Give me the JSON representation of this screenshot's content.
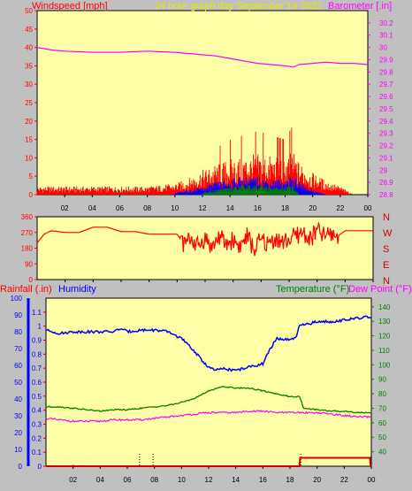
{
  "header": {
    "left_label": "Windspeed [mph]",
    "center_label": "24 hour graph day   September 19 2022",
    "right_label": "Barometer [.in]"
  },
  "bottom_labels": {
    "rainfall": "Rainfall (.in)",
    "humidity": "Humidity",
    "temperature": "Temperature (°F)",
    "dewpoint": "Dew Point (°F)"
  },
  "direction_letters": [
    "N",
    "W",
    "S",
    "E",
    "N"
  ],
  "colors": {
    "bg": "#c0c0c0",
    "plot_bg": "#ffffa8",
    "wind": "#ff0000",
    "gust": "#0000ff",
    "avg": "#008000",
    "baro": "#ff00ff",
    "humidity": "#0000ff",
    "temperature": "#008000",
    "dewpoint": "#ff00ff",
    "rain": "#cc0000"
  },
  "chart_data": [
    {
      "type": "line",
      "title": "24 hour graph day   September 19 2022",
      "x_ticks": [
        "02",
        "04",
        "06",
        "08",
        "10",
        "12",
        "14",
        "16",
        "18",
        "20",
        "22",
        "00"
      ],
      "xlim": [
        0,
        24
      ],
      "left_axis": {
        "label": "Windspeed [mph]",
        "ylim": [
          0,
          50
        ],
        "ticks": [
          "0",
          "5",
          "10",
          "15",
          "20",
          "25",
          "30",
          "35",
          "40",
          "45",
          "50"
        ]
      },
      "right_axis": {
        "label": "Barometer [.in]",
        "ylim": [
          28.8,
          30.3
        ],
        "ticks": [
          "28.8",
          "28.9",
          "29",
          "29.1",
          "29.2",
          "29.3",
          "29.4",
          "29.5",
          "29.6",
          "29.7",
          "29.8",
          "29.9",
          "30",
          "30.1",
          "30.2"
        ]
      },
      "series": [
        {
          "name": "Barometer [.in]",
          "axis": "right",
          "x": [
            0,
            1,
            2,
            4,
            6,
            8,
            10,
            11,
            12,
            13,
            14,
            15,
            16,
            17,
            18,
            18.6,
            19,
            20,
            21,
            22,
            23,
            24
          ],
          "y": [
            30,
            29.98,
            29.97,
            29.96,
            29.96,
            29.97,
            29.96,
            29.95,
            29.94,
            29.93,
            29.91,
            29.89,
            29.87,
            29.86,
            29.85,
            29.84,
            29.86,
            29.87,
            29.88,
            29.87,
            29.87,
            29.86
          ]
        },
        {
          "axis": "left",
          "x": [
            0,
            2,
            4,
            6,
            8,
            10,
            11,
            12,
            13,
            14,
            15,
            16,
            17,
            18,
            18.5,
            19,
            20,
            21,
            22,
            23
          ],
          "y": [
            1.5,
            1.5,
            1.5,
            1.5,
            1.5,
            2,
            3,
            4.5,
            5.5,
            6.5,
            7,
            7.5,
            7,
            6.5,
            8,
            6,
            4,
            2.5,
            1.5,
            0
          ]
        },
        {
          "axis": "left",
          "x": [
            10,
            11,
            12,
            13,
            14,
            15,
            16,
            17,
            18,
            18.5,
            19,
            20,
            21
          ],
          "y": [
            0.5,
            1,
            1.5,
            2.5,
            3,
            3.5,
            3.5,
            3,
            3,
            4,
            2.5,
            1,
            0
          ]
        },
        {
          "axis": "left",
          "x": [
            12,
            13,
            14,
            15,
            16,
            17,
            18,
            18.5,
            19
          ],
          "y": [
            0.5,
            1,
            1.5,
            2,
            2,
            1.5,
            1.5,
            2,
            0
          ]
        }
      ]
    },
    {
      "type": "line",
      "x_ticks": [
        "02",
        "04",
        "06",
        "08",
        "10",
        "12",
        "14",
        "16",
        "18",
        "20",
        "22",
        "00"
      ],
      "xlim": [
        0,
        24
      ],
      "ylim": [
        0,
        360
      ],
      "y_ticks": [
        "0",
        "90",
        "180",
        "270",
        "360"
      ],
      "series": [
        {
          "axis": "left",
          "x": [
            0,
            0.5,
            1,
            2,
            3,
            4,
            5,
            6,
            7,
            8,
            9,
            10,
            10.5,
            11,
            11.5,
            12,
            12.5,
            13,
            13.5,
            14,
            14.5,
            15,
            15.5,
            16,
            16.5,
            17,
            17.5,
            18,
            18.5,
            19,
            19.5,
            20,
            20.5,
            21,
            21.5,
            22,
            23,
            24
          ],
          "y": [
            210,
            260,
            280,
            270,
            270,
            300,
            300,
            275,
            275,
            260,
            260,
            260,
            200,
            240,
            190,
            240,
            180,
            250,
            200,
            230,
            190,
            250,
            170,
            230,
            200,
            240,
            210,
            230,
            250,
            270,
            230,
            280,
            250,
            260,
            250,
            280,
            280,
            280
          ]
        }
      ]
    },
    {
      "type": "line",
      "x_ticks": [
        "02",
        "04",
        "06",
        "08",
        "10",
        "12",
        "14",
        "16",
        "18",
        "20",
        "22",
        "00"
      ],
      "xlim": [
        0,
        24
      ],
      "left_axes": [
        {
          "label": "Humidity",
          "ylim": [
            0,
            100
          ],
          "ticks": [
            "0",
            "10",
            "20",
            "30",
            "40",
            "50",
            "60",
            "70",
            "80",
            "90",
            "100"
          ]
        },
        {
          "label": "Rainfall (.in)",
          "ylim": [
            0,
            1.2
          ],
          "ticks": [
            "0",
            "0.1",
            "0.2",
            "0.3",
            "0.4",
            "0.5",
            "0.6",
            "0.7",
            "0.8",
            "0.9",
            "1",
            "1.1"
          ]
        }
      ],
      "right_axis": {
        "label": "Temperature (°F)",
        "ylim": [
          30,
          146
        ],
        "ticks": [
          "40",
          "50",
          "60",
          "70",
          "80",
          "90",
          "100",
          "110",
          "120",
          "130",
          "140"
        ]
      },
      "series": [
        {
          "name": "Humidity",
          "axis": "humidity",
          "x": [
            0,
            1,
            2,
            3,
            4,
            5,
            5.5,
            6,
            7,
            8,
            9,
            10,
            11,
            11.5,
            12,
            12.5,
            13,
            14,
            15,
            16,
            16.5,
            17,
            18,
            18.5,
            18.7,
            19,
            20,
            21,
            22,
            23,
            24
          ],
          "y": [
            81,
            79,
            80,
            80,
            80,
            80,
            82,
            80,
            81,
            81,
            80,
            76,
            68,
            63,
            59,
            57,
            58,
            57,
            59,
            61,
            69,
            76,
            75,
            77,
            84,
            84,
            86,
            86,
            87,
            88,
            89
          ]
        },
        {
          "name": "Temperature (°F)",
          "axis": "right",
          "x": [
            0,
            1,
            2,
            3,
            4,
            5,
            6,
            7,
            8,
            9,
            10,
            11,
            12,
            13,
            14,
            15,
            16,
            17,
            18,
            18.7,
            19,
            20,
            21,
            22,
            23,
            24
          ],
          "y": [
            71,
            71,
            70,
            69,
            68,
            69,
            69,
            70,
            71,
            72,
            74,
            77,
            82,
            85,
            84,
            84,
            82,
            80,
            78,
            78,
            70,
            69,
            68,
            68,
            67,
            67
          ]
        },
        {
          "name": "Dew Point (°F)",
          "axis": "right",
          "x": [
            0,
            1,
            2,
            3,
            4,
            5,
            6,
            7,
            8,
            9,
            10,
            11,
            12,
            13,
            14,
            15,
            16,
            17,
            18,
            19,
            20,
            21,
            22,
            23,
            24
          ],
          "y": [
            63,
            62,
            61,
            61,
            61,
            62,
            62,
            62,
            63,
            64,
            65,
            66,
            67,
            67,
            67,
            68,
            68,
            67,
            67,
            67,
            67,
            66,
            65,
            64,
            64
          ]
        },
        {
          "name": "Rainfall (.in)",
          "axis": "rain",
          "x": [
            0,
            18.7,
            18.75,
            23.9,
            23.95,
            24
          ],
          "y": [
            0,
            0,
            0.06,
            0.06,
            0,
            0
          ]
        }
      ]
    }
  ]
}
